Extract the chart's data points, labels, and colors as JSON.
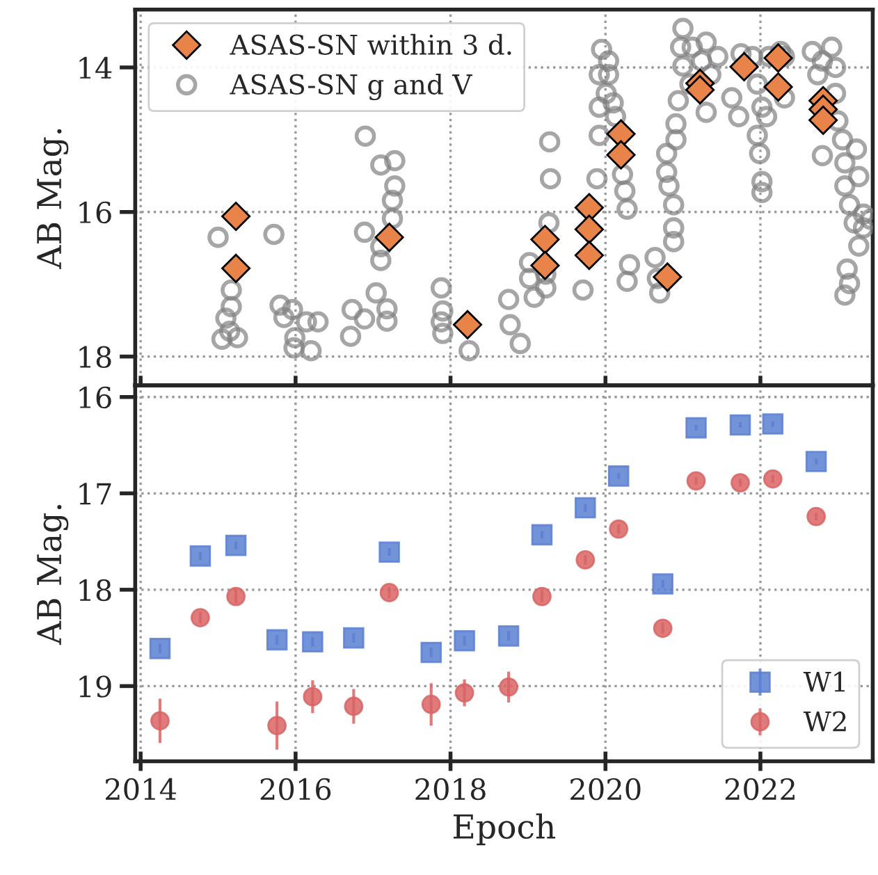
{
  "chart_data": [
    {
      "type": "scatter",
      "ylabel": "AB Mag.",
      "xlim": [
        2013.93,
        2023.45
      ],
      "ylim": [
        18.4,
        13.2
      ],
      "xticks": [
        2014,
        2016,
        2018,
        2020,
        2022
      ],
      "yticks": [
        14,
        16,
        18
      ],
      "grid": true,
      "legend": "top left",
      "tick_labels": "y",
      "series": [
        {
          "name": "ASAS-SN within 3 d.",
          "color": "#e8844a",
          "marker": "diamond",
          "x": [
            2015.23,
            2015.23,
            2017.21,
            2018.22,
            2019.22,
            2019.22,
            2019.79,
            2019.79,
            2019.79,
            2020.2,
            2020.2,
            2020.8,
            2021.22,
            2021.22,
            2021.79,
            2022.23,
            2022.23,
            2022.81,
            2022.81,
            2022.81
          ],
          "values": [
            16.06,
            16.78,
            16.35,
            17.56,
            16.38,
            16.74,
            15.94,
            16.24,
            16.6,
            14.92,
            15.21,
            16.9,
            14.22,
            14.31,
            13.99,
            13.87,
            14.27,
            14.46,
            14.58,
            14.73
          ]
        },
        {
          "name": "ASAS-SN g and V",
          "color": "#808080",
          "marker": "circle",
          "x": [
            2016.9,
            2015.0,
            2015.72,
            2015.17,
            2015.17,
            2015.1,
            2015.05,
            2015.25,
            2015.15,
            2015.8,
            2015.96,
            2015.85,
            2016.14,
            2015.99,
            2016.2,
            2016.29,
            2015.98,
            2016.73,
            2016.89,
            2016.71,
            2017.04,
            2017.18,
            2017.18,
            2017.1,
            2017.28,
            2017.28,
            2017.25,
            2017.25,
            2017.1,
            2017.1,
            2016.89,
            2017.88,
            2017.9,
            2017.88,
            2017.9,
            2018.24,
            2018.75,
            2018.77,
            2018.9,
            2019.02,
            2019.08,
            2019.23,
            2019.23,
            2019.02,
            2019.29,
            2019.28,
            2019.27,
            2019.71,
            2019.89,
            2019.92,
            2019.92,
            2019.95,
            2020.04,
            2020.04,
            2020.01,
            2020.1,
            2019.92,
            2020.13,
            2020.22,
            2020.25,
            2020.28,
            2020.31,
            2020.28,
            2020.64,
            2020.67,
            2020.7,
            2020.79,
            2020.79,
            2020.82,
            2020.88,
            2020.88,
            2020.88,
            2020.91,
            2020.91,
            2020.94,
            2021.0,
            2020.97,
            2021.0,
            2021.09,
            2021.12,
            2021.3,
            2021.3,
            2021.36,
            2021.24,
            2021.45,
            2021.63,
            2021.72,
            2021.75,
            2021.9,
            2021.96,
            2022.02,
            2021.96,
            2021.99,
            2022.02,
            2022.02,
            2022.08,
            2022.11,
            2022.26,
            2022.31,
            2022.31,
            2022.67,
            2022.74,
            2022.8,
            2022.92,
            2022.97,
            2022.97,
            2022.8,
            2023.0,
            2023.06,
            2023.09,
            2023.09,
            2023.24,
            2023.27,
            2023.15,
            2023.21,
            2023.33,
            2023.33,
            2023.27,
            2023.12,
            2023.15,
            2023.09,
            2023.42
          ],
          "values": [
            14.95,
            16.35,
            16.31,
            17.08,
            17.31,
            17.47,
            17.76,
            17.74,
            17.65,
            17.29,
            17.35,
            17.46,
            17.52,
            17.74,
            17.92,
            17.52,
            17.88,
            17.35,
            17.48,
            17.72,
            17.12,
            17.34,
            17.51,
            15.35,
            15.29,
            15.64,
            15.84,
            16.09,
            16.48,
            16.67,
            16.28,
            17.05,
            17.37,
            17.52,
            17.68,
            17.92,
            17.21,
            17.56,
            17.82,
            16.92,
            17.18,
            17.05,
            16.86,
            16.7,
            15.54,
            15.03,
            16.15,
            17.08,
            15.54,
            14.94,
            14.1,
            13.75,
            13.91,
            14.1,
            14.36,
            14.49,
            14.55,
            14.68,
            15.48,
            15.71,
            15.96,
            16.73,
            16.96,
            16.63,
            16.92,
            17.12,
            15.19,
            15.45,
            15.64,
            15.9,
            16.22,
            16.41,
            15.0,
            14.78,
            14.46,
            13.46,
            13.72,
            13.98,
            14.23,
            13.72,
            13.65,
            14.62,
            14.1,
            13.91,
            13.85,
            14.42,
            14.68,
            13.81,
            13.85,
            14.23,
            14.55,
            14.94,
            15.19,
            15.58,
            15.73,
            14.68,
            13.85,
            13.78,
            13.85,
            14.42,
            13.78,
            14.1,
            13.91,
            13.72,
            14.0,
            14.36,
            15.22,
            14.74,
            15.0,
            15.32,
            15.64,
            15.13,
            15.51,
            15.9,
            16.15,
            16.22,
            16.03,
            16.47,
            16.79,
            16.99,
            17.15,
            16.1
          ]
        }
      ]
    },
    {
      "type": "scatter",
      "xlabel": "Epoch",
      "ylabel": "AB Mag.",
      "xlim": [
        2013.93,
        2023.45
      ],
      "ylim": [
        19.78,
        15.88
      ],
      "xticks": [
        2014,
        2016,
        2018,
        2020,
        2022
      ],
      "yticks": [
        16,
        17,
        18,
        19
      ],
      "grid": true,
      "legend": "bottom right",
      "series": [
        {
          "name": "W1",
          "color": "#5a80d2",
          "marker": "square",
          "x": [
            2014.25,
            2014.77,
            2015.23,
            2015.76,
            2016.22,
            2016.75,
            2017.21,
            2017.75,
            2018.18,
            2018.75,
            2019.18,
            2019.74,
            2020.17,
            2020.74,
            2021.17,
            2021.74,
            2022.16,
            2022.72
          ],
          "values": [
            18.61,
            17.65,
            17.54,
            18.52,
            18.54,
            18.5,
            17.61,
            18.65,
            18.53,
            18.48,
            17.43,
            17.15,
            16.82,
            17.94,
            16.32,
            16.29,
            16.28,
            16.67
          ],
          "errors": [
            0.05,
            0.04,
            0.04,
            0.05,
            0.05,
            0.05,
            0.04,
            0.05,
            0.05,
            0.05,
            0.04,
            0.04,
            0.03,
            0.04,
            0.03,
            0.03,
            0.03,
            0.03
          ]
        },
        {
          "name": "W2",
          "color": "#d96464",
          "marker": "circle",
          "x": [
            2014.25,
            2014.77,
            2015.23,
            2015.76,
            2016.22,
            2016.75,
            2017.21,
            2017.75,
            2018.18,
            2018.75,
            2019.18,
            2019.74,
            2020.17,
            2020.74,
            2021.17,
            2021.74,
            2022.16,
            2022.72
          ],
          "values": [
            19.36,
            18.29,
            18.07,
            19.41,
            19.11,
            19.21,
            18.03,
            19.19,
            19.07,
            19.01,
            18.07,
            17.69,
            17.37,
            18.4,
            16.87,
            16.89,
            16.85,
            17.24
          ],
          "errors": [
            0.23,
            0.06,
            0.07,
            0.25,
            0.17,
            0.18,
            0.06,
            0.22,
            0.14,
            0.16,
            0.06,
            0.05,
            0.05,
            0.06,
            0.04,
            0.04,
            0.04,
            0.04
          ]
        }
      ]
    }
  ]
}
